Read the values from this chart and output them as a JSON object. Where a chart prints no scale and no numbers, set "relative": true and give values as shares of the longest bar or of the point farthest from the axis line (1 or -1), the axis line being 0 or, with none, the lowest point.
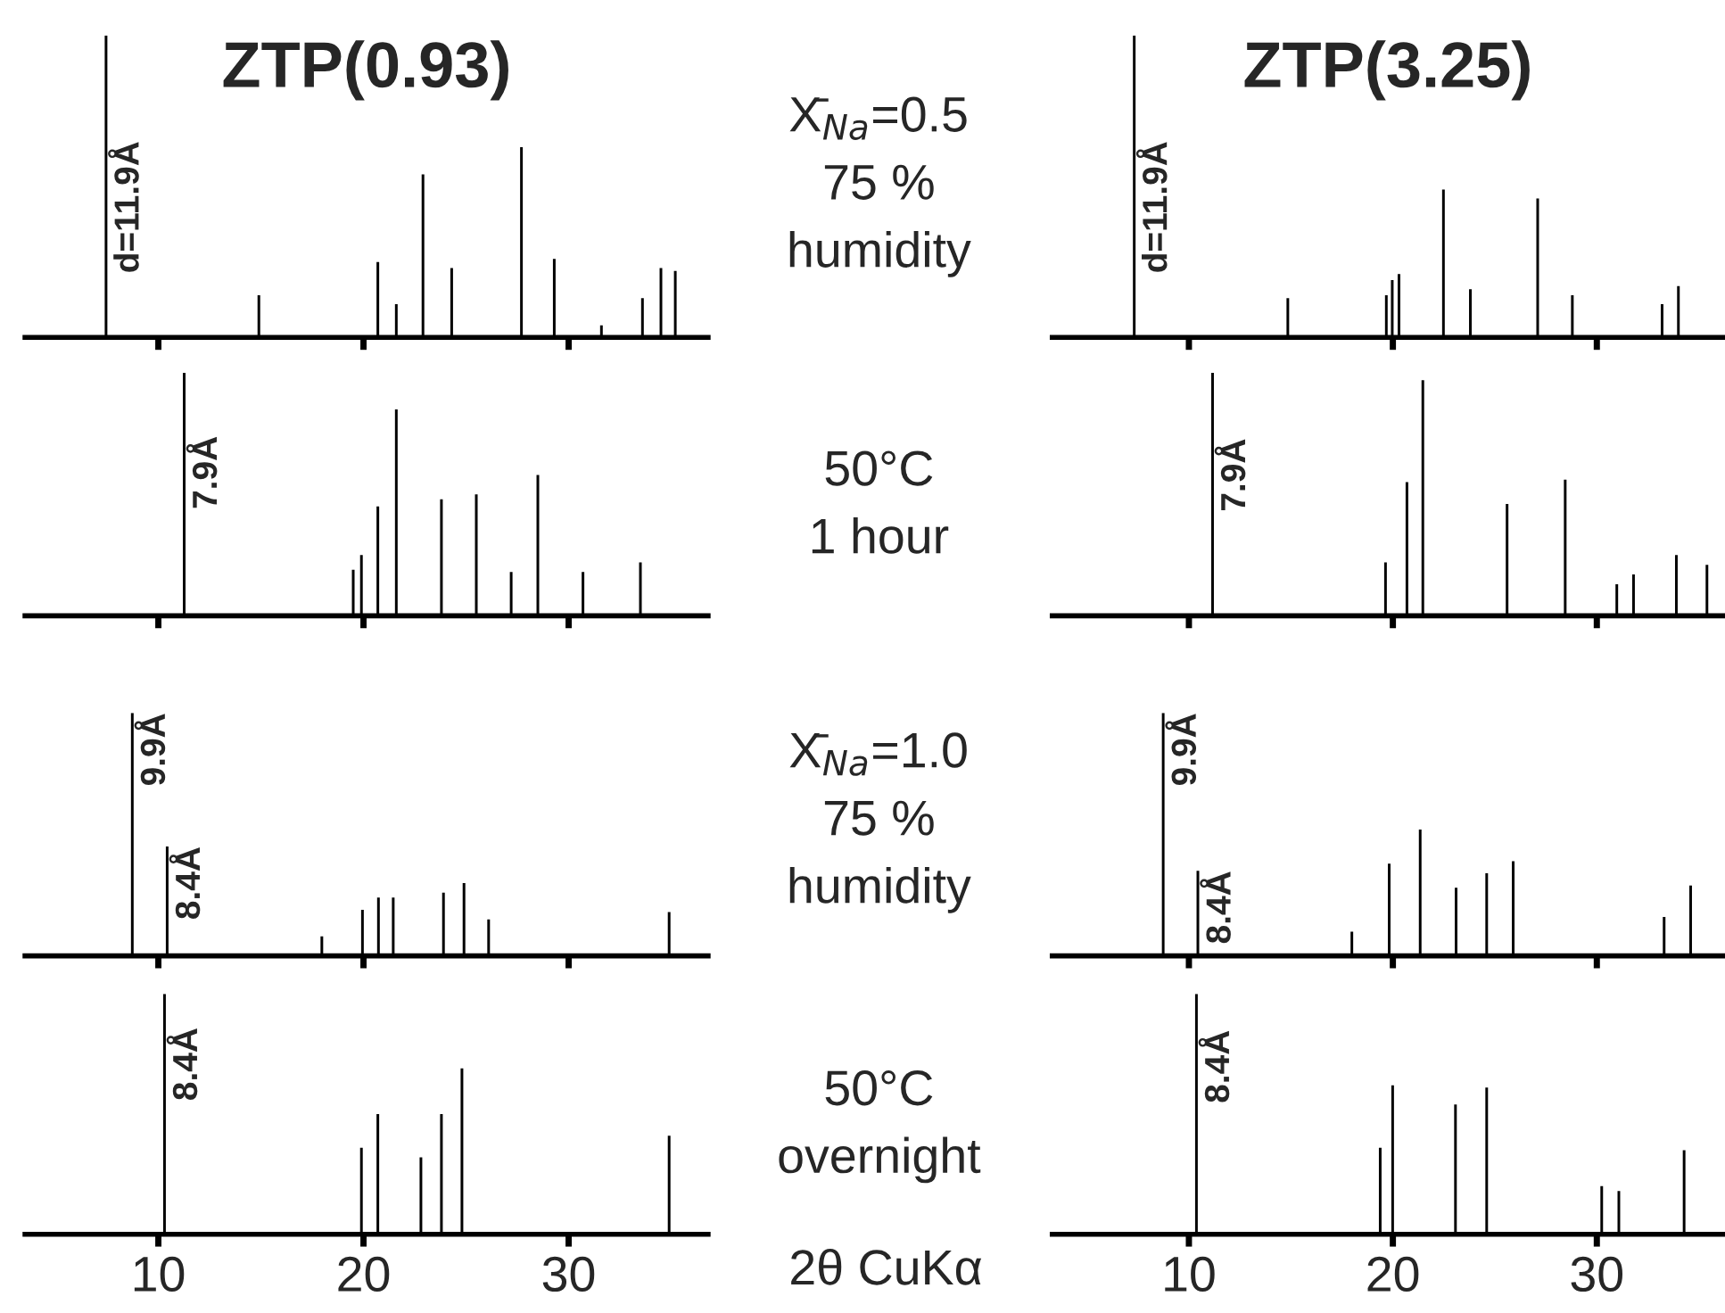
{
  "chart_data": [
    {
      "type": "bar",
      "title": "ZTP(0.93)",
      "relative": true,
      "xlim": [
        3.5,
        36.8
      ],
      "xticks": [
        {
          "value": 10,
          "label": null
        },
        {
          "value": 20,
          "label": null
        },
        {
          "value": 30,
          "label": null
        }
      ],
      "tick_labels": false,
      "grid": false,
      "x": [
        7.45,
        14.9,
        20.7,
        21.6,
        22.9,
        24.3,
        27.7,
        29.3,
        31.6,
        33.6,
        34.5,
        35.2
      ],
      "series": [
        {
          "color": "#000000",
          "values": [
            1,
            0.14,
            0.25,
            0.11,
            0.54,
            0.23,
            0.63,
            0.26,
            0.04,
            0.13,
            0.23,
            0.22
          ]
        }
      ],
      "annotations": [
        {
          "text": "d=11.9Å",
          "x": 7.45,
          "y": 0.65
        },
        "X̄$_{Na}$=0.5\n75 %\nhumidity"
      ]
    },
    {
      "type": "bar",
      "title": "ZTP(3.25)",
      "relative": true,
      "xlim": [
        3.3,
        36.2
      ],
      "xticks": [
        {
          "value": 10,
          "label": null
        },
        {
          "value": 20,
          "label": null
        },
        {
          "value": 30,
          "label": null
        }
      ],
      "tick_labels": false,
      "grid": false,
      "x": [
        7.32,
        14.85,
        19.68,
        19.97,
        20.3,
        22.48,
        23.8,
        27.1,
        28.8,
        33.2,
        34.0
      ],
      "series": [
        {
          "color": "#000000",
          "values": [
            1,
            0.13,
            0.14,
            0.19,
            0.21,
            0.49,
            0.16,
            0.46,
            0.14,
            0.11,
            0.17
          ]
        }
      ],
      "annotations": [
        {
          "text": "d=11.9Å",
          "x": 7.32,
          "y": 0.65
        }
      ]
    },
    {
      "type": "bar",
      "relative": true,
      "xlim": [
        3.5,
        36.8
      ],
      "xticks": [
        {
          "value": 10,
          "label": null
        },
        {
          "value": 20,
          "label": null
        },
        {
          "value": 30,
          "label": null
        }
      ],
      "tick_labels": false,
      "grid": false,
      "x": [
        11.26,
        19.5,
        19.9,
        20.7,
        21.6,
        23.8,
        25.5,
        27.2,
        28.5,
        30.7,
        33.5
      ],
      "series": [
        {
          "color": "#000000",
          "values": [
            1,
            0.19,
            0.25,
            0.45,
            0.85,
            0.48,
            0.5,
            0.18,
            0.58,
            0.18,
            0.22
          ]
        }
      ],
      "annotations": [
        {
          "text": "7.9Å",
          "x": 11.26,
          "y": 0.74
        },
        "50°C\n1 hour"
      ]
    },
    {
      "type": "bar",
      "relative": true,
      "xlim": [
        3.3,
        36.2
      ],
      "xticks": [
        {
          "value": 10,
          "label": null
        },
        {
          "value": 20,
          "label": null
        },
        {
          "value": 30,
          "label": null
        }
      ],
      "tick_labels": false,
      "grid": false,
      "x": [
        11.16,
        19.64,
        20.69,
        21.47,
        25.6,
        28.45,
        30.98,
        31.8,
        33.9,
        35.4
      ],
      "series": [
        {
          "color": "#000000",
          "values": [
            1,
            0.22,
            0.55,
            0.97,
            0.46,
            0.56,
            0.13,
            0.17,
            0.25,
            0.21
          ]
        }
      ],
      "annotations": [
        {
          "text": "7.9Å",
          "x": 11.16,
          "y": 0.73
        }
      ]
    },
    {
      "type": "bar",
      "relative": true,
      "xlim": [
        3.5,
        36.8
      ],
      "xticks": [
        {
          "value": 10,
          "label": null
        },
        {
          "value": 20,
          "label": null
        },
        {
          "value": 30,
          "label": null
        }
      ],
      "tick_labels": false,
      "grid": false,
      "x": [
        8.73,
        10.43,
        17.97,
        19.95,
        20.73,
        21.45,
        23.9,
        24.9,
        26.1,
        34.9
      ],
      "series": [
        {
          "color": "#000000",
          "values": [
            1,
            0.45,
            0.08,
            0.19,
            0.24,
            0.24,
            0.26,
            0.3,
            0.15,
            0.18
          ]
        }
      ],
      "annotations": [
        {
          "text": "9.9Å",
          "x": 8.73,
          "y": 1
        },
        {
          "text": "8.4Å",
          "x": 10.43,
          "y": 0.45
        },
        "X̄$_{Na}$=1.0\n75 %\nhumidity"
      ]
    },
    {
      "type": "bar",
      "relative": true,
      "xlim": [
        3.3,
        36.2
      ],
      "xticks": [
        {
          "value": 10,
          "label": null
        },
        {
          "value": 20,
          "label": null
        },
        {
          "value": 30,
          "label": null
        }
      ],
      "tick_labels": false,
      "grid": false,
      "x": [
        8.74,
        10.44,
        17.99,
        19.82,
        21.34,
        23.1,
        24.6,
        25.9,
        33.3,
        34.6
      ],
      "series": [
        {
          "color": "#000000",
          "values": [
            1,
            0.35,
            0.1,
            0.38,
            0.52,
            0.28,
            0.34,
            0.39,
            0.16,
            0.29
          ]
        }
      ],
      "annotations": [
        {
          "text": "9.9Å",
          "x": 8.74,
          "y": 1
        },
        {
          "text": "8.4Å",
          "x": 10.44,
          "y": 0.35
        }
      ]
    },
    {
      "type": "bar",
      "relative": true,
      "xlim": [
        3.5,
        36.8
      ],
      "xticks": [
        10,
        20,
        30
      ],
      "tick_labels": "x",
      "grid": false,
      "xlabel": "2θ CuKα",
      "x": [
        10.3,
        19.9,
        20.7,
        22.8,
        23.8,
        24.8,
        34.9
      ],
      "series": [
        {
          "color": "#000000",
          "values": [
            1,
            0.36,
            0.5,
            0.32,
            0.5,
            0.69,
            0.41
          ]
        }
      ],
      "annotations": [
        {
          "text": "8.4Å",
          "x": 10.3,
          "y": 0.86
        },
        "50°C\novernight"
      ]
    },
    {
      "type": "bar",
      "relative": true,
      "xlim": [
        3.3,
        36.2
      ],
      "xticks": [
        10,
        20,
        30
      ],
      "tick_labels": "x",
      "grid": false,
      "x": [
        10.37,
        19.38,
        19.99,
        23.07,
        24.6,
        30.24,
        31.08,
        34.28
      ],
      "series": [
        {
          "color": "#000000",
          "values": [
            1,
            0.36,
            0.62,
            0.54,
            0.61,
            0.2,
            0.18,
            0.35
          ]
        }
      ],
      "annotations": [
        {
          "text": "8.4Å",
          "x": 10.37,
          "y": 0.85
        }
      ]
    }
  ]
}
